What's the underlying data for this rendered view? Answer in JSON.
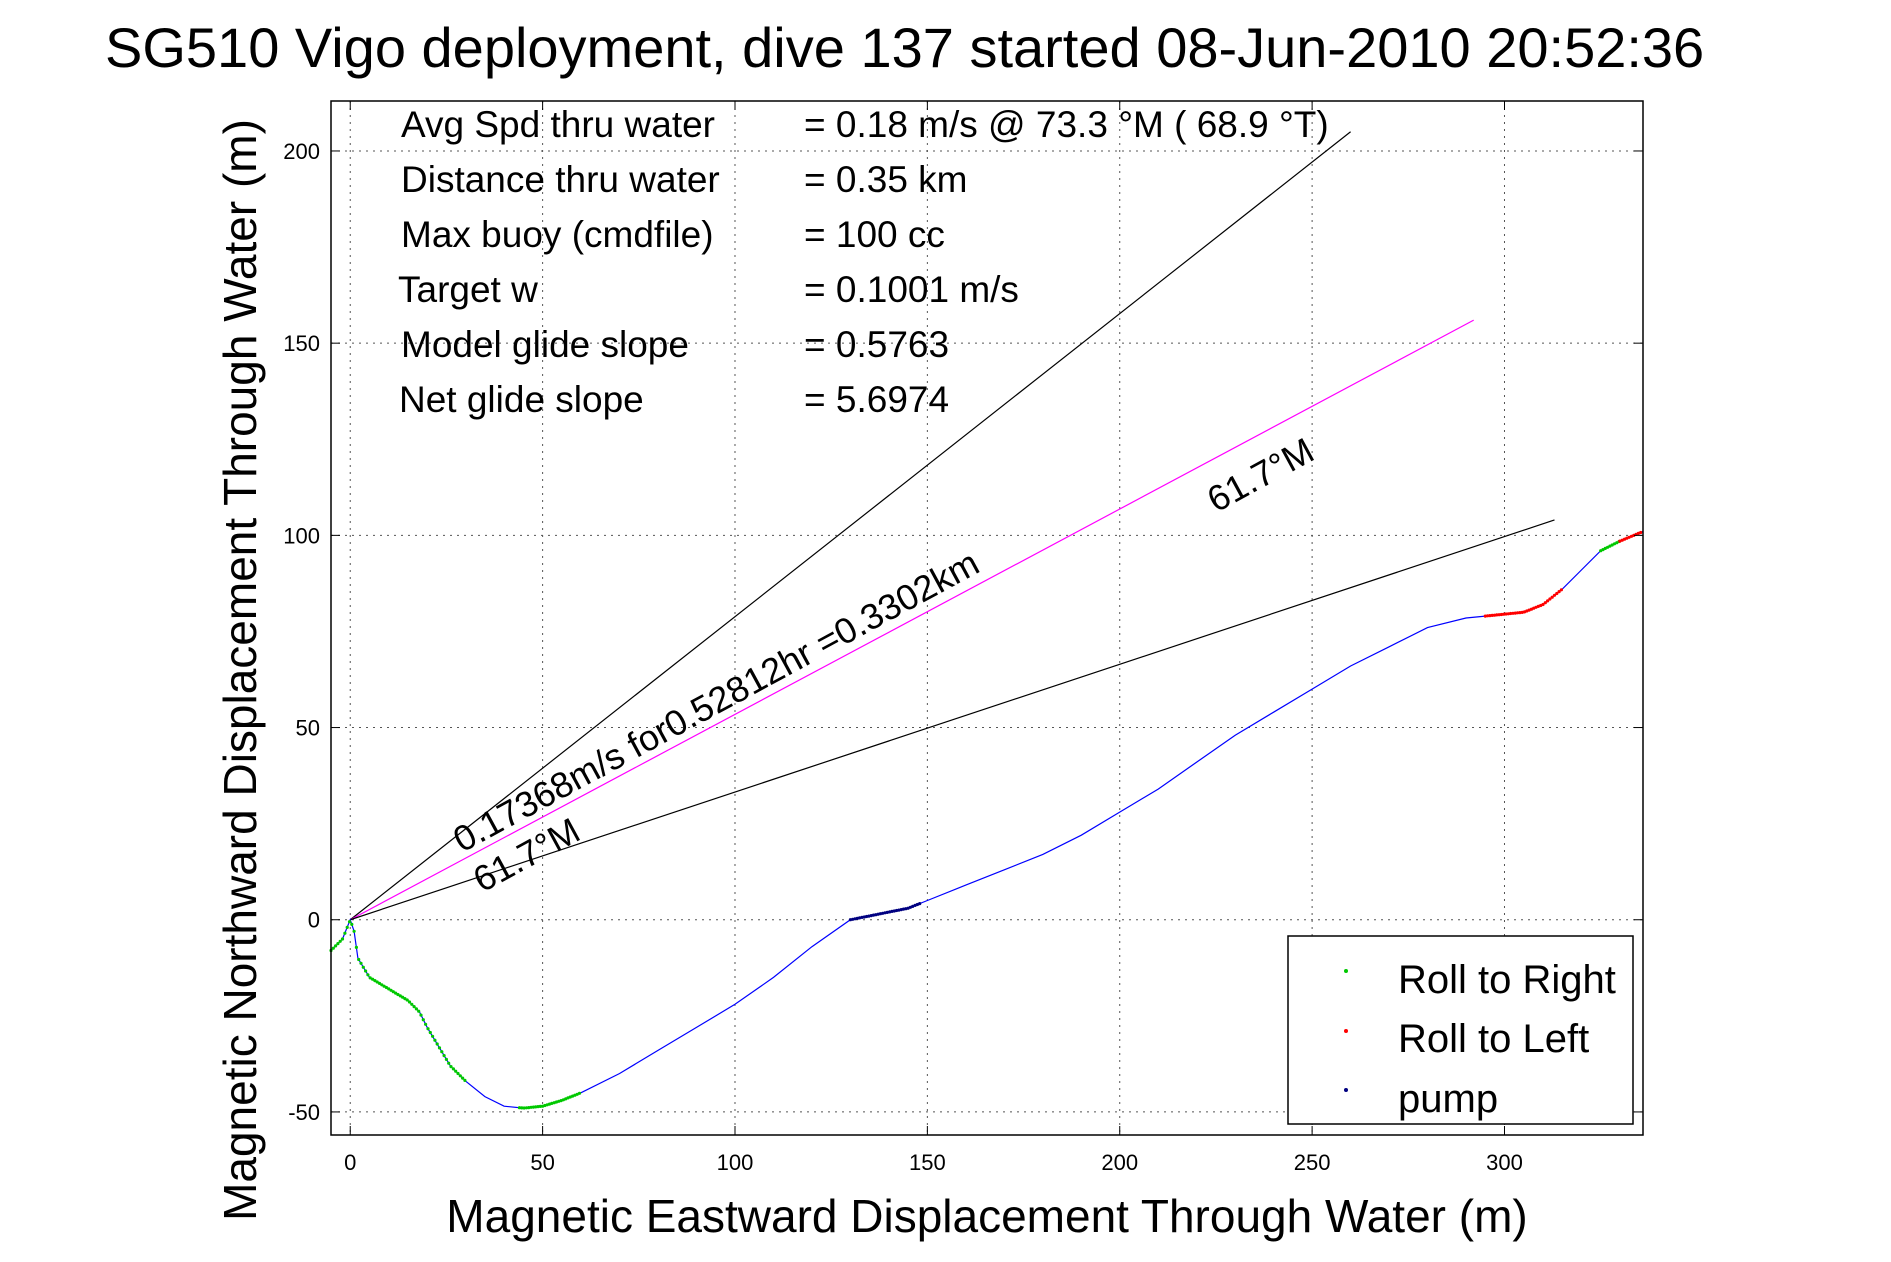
{
  "chart_data": {
    "type": "line",
    "title": "SG510 Vigo deployment, dive 137 started 08-Jun-2010 20:52:36",
    "xlabel": "Magnetic Eastward Displacement Through Water (m)",
    "ylabel": "Magnetic Northward Displacement Through Water (m)",
    "xlim": [
      -5,
      336
    ],
    "ylim": [
      -56,
      213
    ],
    "xticks": [
      0,
      50,
      100,
      150,
      200,
      250,
      300
    ],
    "yticks": [
      -50,
      0,
      50,
      100,
      150,
      200
    ],
    "grid": true,
    "legend_position": "bottom-right",
    "info_lines": [
      {
        "label": "Avg Spd thru water",
        "value": "=  0.18 m/s @  73.3 °M ( 68.9 °T)"
      },
      {
        "label": "Distance thru water",
        "value": "=  0.35 km"
      },
      {
        "label": "Max buoy (cmdfile)",
        "value": "= 100 cc"
      },
      {
        "label": "Target w",
        "value": "= 0.1001 m/s"
      },
      {
        "label": "Model glide slope",
        "value": "= 0.5763"
      },
      {
        "label": "Net glide slope",
        "value": "= 5.6974"
      }
    ],
    "annotations": {
      "speed_line": "0.17368m/s for0.52812hr =0.3302km",
      "heading_upper": "61.7°M",
      "heading_lower": "61.7°M"
    },
    "reference_lines": [
      {
        "name": "heading-upper",
        "x": [
          0,
          260
        ],
        "y": [
          0,
          205
        ],
        "color": "#000000"
      },
      {
        "name": "mean-velocity",
        "x": [
          0,
          292
        ],
        "y": [
          0,
          156
        ],
        "color": "#ff00ff"
      },
      {
        "name": "heading-lower",
        "x": [
          0,
          313
        ],
        "y": [
          0,
          104
        ],
        "color": "#000000"
      }
    ],
    "track": {
      "color": "#0000ff",
      "x": [
        -5,
        -2,
        0,
        1,
        2,
        5,
        10,
        15,
        18,
        20,
        23,
        26,
        30,
        35,
        40,
        45,
        50,
        55,
        60,
        70,
        80,
        90,
        100,
        110,
        120,
        130,
        135,
        140,
        145,
        150,
        160,
        170,
        180,
        190,
        200,
        210,
        220,
        230,
        240,
        250,
        260,
        270,
        280,
        290,
        295,
        300,
        305,
        310,
        315,
        320,
        325,
        330,
        336
      ],
      "y": [
        -8,
        -5,
        0,
        -3,
        -10,
        -15,
        -18,
        -21,
        -24,
        -28,
        -33,
        -38,
        -42,
        -46,
        -48.5,
        -49,
        -48.5,
        -47,
        -45,
        -40,
        -34,
        -28,
        -22,
        -15,
        -7,
        0,
        1,
        2,
        3,
        5,
        9,
        13,
        17,
        22,
        28,
        34,
        41,
        48,
        54,
        60,
        66,
        71,
        76,
        78.5,
        79,
        79.5,
        80,
        82,
        86,
        91,
        96,
        98.5,
        101
      ]
    },
    "series": [
      {
        "name": "Roll to Right",
        "color": "#00c800",
        "segments": [
          [
            -5,
            30
          ],
          [
            44,
            60
          ],
          [
            325,
            330
          ]
        ]
      },
      {
        "name": "Roll to Left",
        "color": "#ff0000",
        "segments": [
          [
            295,
            315
          ],
          [
            330,
            336
          ]
        ]
      },
      {
        "name": "pump",
        "color": "#000080",
        "segments": [
          [
            130,
            148
          ]
        ]
      }
    ]
  }
}
